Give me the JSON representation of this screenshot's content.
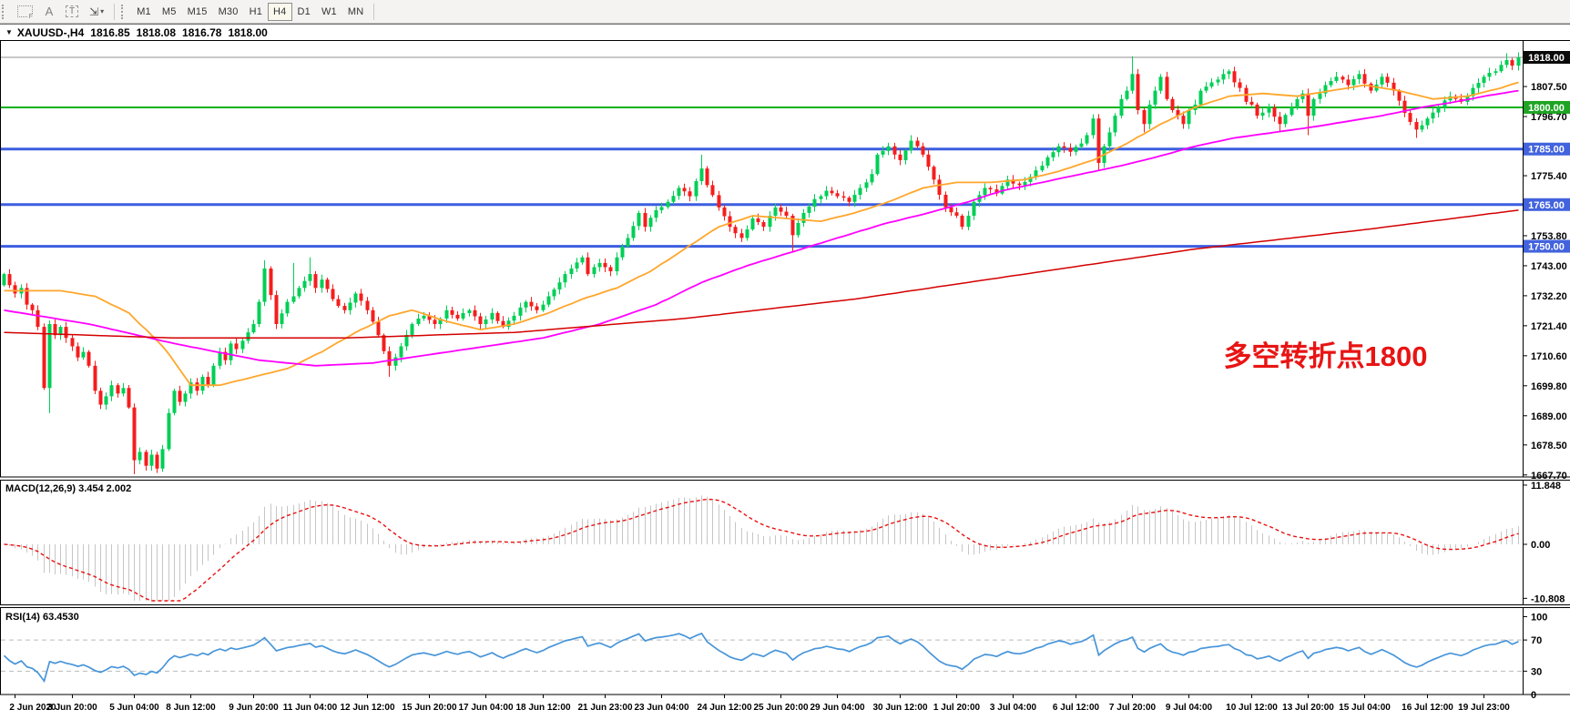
{
  "toolbar": {
    "grid_f": "F",
    "tool_a": "A",
    "tool_t": "T",
    "arrow_glyph": "⇲",
    "dropdown_caret": "▾",
    "timeframes": [
      "M1",
      "M5",
      "M15",
      "M30",
      "H1",
      "H4",
      "D1",
      "W1",
      "MN"
    ],
    "active_timeframe": "H4"
  },
  "quote_bar": {
    "dropdown_glyph": "▼",
    "symbol": "XAUUSD-,H4",
    "open": "1816.85",
    "high": "1818.08",
    "low": "1816.78",
    "close": "1818.00"
  },
  "colors": {
    "up": "#00cf56",
    "down": "#f51d1d",
    "ma_fast": "#ffa62b",
    "ma_mid": "#ff00ff",
    "ma_slow": "#d40000",
    "hline_green": "#00b21b",
    "hline_blue": "#3c5ee0",
    "badge_black": "#0a0a0a",
    "badge_green": "#1ea422",
    "badge_blue": "#4263dd",
    "current_price_line": "#909090",
    "macd_hist": "#c6c6c6",
    "macd_signal": "#e81010",
    "rsi_line": "#4795d9",
    "rsi_level": "#b9b9b9",
    "axis_text": "#000000",
    "annotation": "#e81414",
    "border": "#000000"
  },
  "chart_data": {
    "type": "candlestick",
    "symbol": "XAUUSD",
    "timeframe": "H4",
    "bars": 268,
    "price_axis_top": 1823.9,
    "price_axis_bottom": 1665.5,
    "close_path": [
      [
        0,
        1740
      ],
      [
        1,
        1736
      ],
      [
        2,
        1733
      ],
      [
        3,
        1735
      ],
      [
        4,
        1729
      ],
      [
        5,
        1727
      ],
      [
        6,
        1721
      ],
      [
        7,
        1699
      ],
      [
        8,
        1722
      ],
      [
        9,
        1718
      ],
      [
        10,
        1721
      ],
      [
        11,
        1717
      ],
      [
        12,
        1714
      ],
      [
        13,
        1710
      ],
      [
        14,
        1712
      ],
      [
        15,
        1707
      ],
      [
        16,
        1698
      ],
      [
        17,
        1693
      ],
      [
        18,
        1696
      ],
      [
        19,
        1700
      ],
      [
        20,
        1697
      ],
      [
        21,
        1699
      ],
      [
        22,
        1692
      ],
      [
        23,
        1673
      ],
      [
        24,
        1676
      ],
      [
        25,
        1671
      ],
      [
        26,
        1675
      ],
      [
        27,
        1670
      ],
      [
        28,
        1677
      ],
      [
        29,
        1690
      ],
      [
        30,
        1698
      ],
      [
        31,
        1694
      ],
      [
        32,
        1697
      ],
      [
        33,
        1701
      ],
      [
        34,
        1698
      ],
      [
        35,
        1703
      ],
      [
        36,
        1700
      ],
      [
        37,
        1707
      ],
      [
        38,
        1712
      ],
      [
        39,
        1709
      ],
      [
        40,
        1715
      ],
      [
        41,
        1713
      ],
      [
        42,
        1716
      ],
      [
        43,
        1719
      ],
      [
        44,
        1722
      ],
      [
        45,
        1730
      ],
      [
        46,
        1742
      ],
      [
        48,
        1722
      ],
      [
        50,
        1730
      ],
      [
        52,
        1735
      ],
      [
        54,
        1740
      ],
      [
        55,
        1735
      ],
      [
        56,
        1738
      ],
      [
        58,
        1731
      ],
      [
        60,
        1727
      ],
      [
        62,
        1733
      ],
      [
        64,
        1727
      ],
      [
        66,
        1718
      ],
      [
        68,
        1707
      ],
      [
        70,
        1714
      ],
      [
        72,
        1722
      ],
      [
        74,
        1725
      ],
      [
        76,
        1722
      ],
      [
        78,
        1727
      ],
      [
        80,
        1724
      ],
      [
        82,
        1727
      ],
      [
        84,
        1722
      ],
      [
        86,
        1726
      ],
      [
        88,
        1721
      ],
      [
        90,
        1725
      ],
      [
        92,
        1730
      ],
      [
        94,
        1727
      ],
      [
        96,
        1732
      ],
      [
        98,
        1737
      ],
      [
        100,
        1742
      ],
      [
        102,
        1746
      ],
      [
        103,
        1740
      ],
      [
        105,
        1744
      ],
      [
        107,
        1741
      ],
      [
        108,
        1746
      ],
      [
        110,
        1753
      ],
      [
        112,
        1762
      ],
      [
        113,
        1757
      ],
      [
        115,
        1763
      ],
      [
        117,
        1766
      ],
      [
        119,
        1771
      ],
      [
        121,
        1768
      ],
      [
        123,
        1778
      ],
      [
        124,
        1772
      ],
      [
        126,
        1764
      ],
      [
        128,
        1757
      ],
      [
        130,
        1753
      ],
      [
        132,
        1760
      ],
      [
        134,
        1757
      ],
      [
        136,
        1764
      ],
      [
        138,
        1761
      ],
      [
        139,
        1754
      ],
      [
        141,
        1762
      ],
      [
        143,
        1767
      ],
      [
        145,
        1770
      ],
      [
        147,
        1768
      ],
      [
        149,
        1766
      ],
      [
        151,
        1771
      ],
      [
        153,
        1776
      ],
      [
        154,
        1783
      ],
      [
        156,
        1786
      ],
      [
        158,
        1781
      ],
      [
        160,
        1788
      ],
      [
        162,
        1783
      ],
      [
        164,
        1774
      ],
      [
        166,
        1764
      ],
      [
        168,
        1761
      ],
      [
        169,
        1757
      ],
      [
        171,
        1766
      ],
      [
        173,
        1771
      ],
      [
        175,
        1769
      ],
      [
        177,
        1774
      ],
      [
        179,
        1772
      ],
      [
        181,
        1775
      ],
      [
        183,
        1779
      ],
      [
        184,
        1782
      ],
      [
        186,
        1786
      ],
      [
        188,
        1784
      ],
      [
        190,
        1787
      ],
      [
        191,
        1790
      ],
      [
        192,
        1796
      ],
      [
        193,
        1780
      ],
      [
        194,
        1786
      ],
      [
        195,
        1791
      ],
      [
        196,
        1797
      ],
      [
        197,
        1803
      ],
      [
        198,
        1806
      ],
      [
        199,
        1812
      ],
      [
        200,
        1799
      ],
      [
        201,
        1794
      ],
      [
        202,
        1801
      ],
      [
        203,
        1806
      ],
      [
        204,
        1811
      ],
      [
        205,
        1803
      ],
      [
        206,
        1799
      ],
      [
        207,
        1797
      ],
      [
        208,
        1794
      ],
      [
        209,
        1799
      ],
      [
        210,
        1801
      ],
      [
        211,
        1806
      ],
      [
        213,
        1809
      ],
      [
        215,
        1812
      ],
      [
        216,
        1813
      ],
      [
        217,
        1809
      ],
      [
        218,
        1807
      ],
      [
        219,
        1802
      ],
      [
        220,
        1801
      ],
      [
        221,
        1797
      ],
      [
        223,
        1800
      ],
      [
        225,
        1794
      ],
      [
        227,
        1800
      ],
      [
        229,
        1805
      ],
      [
        230,
        1797
      ],
      [
        231,
        1803
      ],
      [
        233,
        1808
      ],
      [
        235,
        1811
      ],
      [
        237,
        1808
      ],
      [
        239,
        1812
      ],
      [
        241,
        1806
      ],
      [
        243,
        1811
      ],
      [
        245,
        1806
      ],
      [
        247,
        1798
      ],
      [
        249,
        1792
      ],
      [
        251,
        1796
      ],
      [
        253,
        1800
      ],
      [
        255,
        1804
      ],
      [
        257,
        1802
      ],
      [
        259,
        1807
      ],
      [
        261,
        1811
      ],
      [
        263,
        1813
      ],
      [
        265,
        1817
      ],
      [
        266,
        1815
      ],
      [
        267,
        1818
      ]
    ],
    "wick_overrides": [
      [
        8,
        "l",
        1690
      ],
      [
        23,
        "l",
        1668
      ],
      [
        27,
        "l",
        1669
      ],
      [
        46,
        "h",
        1745
      ],
      [
        51,
        "h",
        1744
      ],
      [
        54,
        "h",
        1746
      ],
      [
        68,
        "l",
        1703
      ],
      [
        123,
        "h",
        1783
      ],
      [
        139,
        "l",
        1748
      ],
      [
        160,
        "h",
        1790
      ],
      [
        169,
        "l",
        1756
      ],
      [
        193,
        "l",
        1777
      ],
      [
        199,
        "h",
        1818.4
      ],
      [
        201,
        "l",
        1791
      ],
      [
        225,
        "l",
        1791
      ],
      [
        230,
        "l",
        1790
      ],
      [
        249,
        "l",
        1789
      ],
      [
        265,
        "h",
        1819.5
      ]
    ],
    "moving_averages": [
      {
        "name": "ma-fast-orange",
        "color_key": "ma_fast",
        "width": 1.8,
        "anchors": [
          [
            0,
            1734
          ],
          [
            10,
            1734
          ],
          [
            16,
            1732
          ],
          [
            22,
            1726
          ],
          [
            28,
            1714
          ],
          [
            33,
            1700
          ],
          [
            38,
            1700
          ],
          [
            44,
            1703
          ],
          [
            50,
            1706
          ],
          [
            56,
            1712
          ],
          [
            62,
            1719
          ],
          [
            68,
            1725
          ],
          [
            72,
            1727
          ],
          [
            78,
            1723
          ],
          [
            84,
            1720
          ],
          [
            90,
            1722
          ],
          [
            96,
            1726
          ],
          [
            102,
            1731
          ],
          [
            108,
            1735
          ],
          [
            114,
            1741
          ],
          [
            120,
            1749
          ],
          [
            126,
            1757
          ],
          [
            132,
            1761
          ],
          [
            138,
            1760
          ],
          [
            144,
            1759
          ],
          [
            150,
            1762
          ],
          [
            156,
            1766
          ],
          [
            162,
            1771
          ],
          [
            168,
            1773
          ],
          [
            174,
            1773
          ],
          [
            180,
            1774
          ],
          [
            186,
            1777
          ],
          [
            192,
            1781
          ],
          [
            198,
            1787
          ],
          [
            204,
            1794
          ],
          [
            210,
            1800
          ],
          [
            216,
            1804
          ],
          [
            222,
            1805
          ],
          [
            228,
            1804
          ],
          [
            234,
            1806
          ],
          [
            240,
            1808
          ],
          [
            246,
            1806
          ],
          [
            252,
            1803
          ],
          [
            258,
            1804
          ],
          [
            264,
            1807
          ],
          [
            267,
            1809
          ]
        ]
      },
      {
        "name": "ma-mid-magenta",
        "color_key": "ma_mid",
        "width": 1.8,
        "anchors": [
          [
            0,
            1727
          ],
          [
            15,
            1722
          ],
          [
            30,
            1715
          ],
          [
            45,
            1709
          ],
          [
            55,
            1707
          ],
          [
            65,
            1708
          ],
          [
            75,
            1711
          ],
          [
            85,
            1714
          ],
          [
            95,
            1717
          ],
          [
            105,
            1722
          ],
          [
            115,
            1729
          ],
          [
            123,
            1737
          ],
          [
            131,
            1743
          ],
          [
            139,
            1748
          ],
          [
            147,
            1753
          ],
          [
            155,
            1758
          ],
          [
            163,
            1762
          ],
          [
            170,
            1766
          ],
          [
            176,
            1770
          ],
          [
            183,
            1773
          ],
          [
            190,
            1776
          ],
          [
            197,
            1779
          ],
          [
            203,
            1782
          ],
          [
            210,
            1786
          ],
          [
            217,
            1789
          ],
          [
            224,
            1791
          ],
          [
            231,
            1793
          ],
          [
            237,
            1795
          ],
          [
            243,
            1797
          ],
          [
            250,
            1800
          ],
          [
            256,
            1802
          ],
          [
            261,
            1804
          ],
          [
            267,
            1806
          ]
        ]
      },
      {
        "name": "ma-slow-red",
        "color_key": "ma_slow",
        "width": 1.5,
        "anchors": [
          [
            0,
            1719
          ],
          [
            30,
            1717
          ],
          [
            60,
            1717
          ],
          [
            90,
            1719
          ],
          [
            120,
            1724
          ],
          [
            150,
            1731
          ],
          [
            180,
            1740
          ],
          [
            210,
            1749
          ],
          [
            240,
            1756
          ],
          [
            267,
            1763
          ]
        ]
      }
    ],
    "hlines": [
      {
        "price": 1800.0,
        "badge": "1800.00",
        "color_key": "hline_green",
        "badge_color_key": "badge_green",
        "width": 2
      },
      {
        "price": 1785.0,
        "badge": "1785.00",
        "color_key": "hline_blue",
        "badge_color_key": "badge_blue",
        "width": 3
      },
      {
        "price": 1765.0,
        "badge": "1765.00",
        "color_key": "hline_blue",
        "badge_color_key": "badge_blue",
        "width": 3
      },
      {
        "price": 1750.0,
        "badge": "1750.00",
        "color_key": "hline_blue",
        "badge_color_key": "badge_blue",
        "width": 3
      }
    ],
    "current_price": {
      "value": 1818.0,
      "badge": "1818.00"
    },
    "y_ticks": [
      "1807.50",
      "1796.70",
      "1775.40",
      "1753.80",
      "1743.00",
      "1732.20",
      "1721.40",
      "1710.60",
      "1699.80",
      "1689.00",
      "1678.50",
      "1667.70"
    ],
    "x_labels": [
      "2 Jun 2020",
      "3 Jun 20:00",
      "5 Jun 04:00",
      "8 Jun 12:00",
      "9 Jun 20:00",
      "11 Jun 04:00",
      "12 Jun 12:00",
      "15 Jun 20:00",
      "17 Jun 04:00",
      "18 Jun 12:00",
      "21 Jun 23:00",
      "23 Jun 04:00",
      "24 Jun 12:00",
      "25 Jun 20:00",
      "29 Jun 04:00",
      "30 Jun 12:00",
      "1 Jul 20:00",
      "3 Jul 04:00",
      "6 Jul 12:00",
      "7 Jul 20:00",
      "9 Jul 04:00",
      "10 Jul 12:00",
      "13 Jul 20:00",
      "15 Jul 04:00",
      "16 Jul 12:00",
      "19 Jul 23:00"
    ],
    "x_label_bars": [
      2,
      12,
      23,
      33,
      44,
      54,
      64,
      75,
      85,
      95,
      106,
      116,
      127,
      137,
      147,
      158,
      168,
      178,
      189,
      199,
      209,
      220,
      230,
      240,
      251,
      261
    ],
    "annotation": {
      "text": "多空转折点1800",
      "bar": 233,
      "price": 1707,
      "font_size": 31
    },
    "macd": {
      "label": "MACD(12,26,9)",
      "current": "3.454 2.002",
      "fast": 12,
      "slow": 26,
      "signal": 9,
      "axis_labels": [
        "11.848",
        "0.00",
        "-10.808"
      ],
      "axis_values": [
        11.848,
        0,
        -10.808
      ]
    },
    "rsi": {
      "label": "RSI(14)",
      "current": "63.4530",
      "period": 14,
      "axis_labels": [
        "100",
        "70",
        "30",
        "0"
      ],
      "axis_values": [
        100,
        70,
        30,
        0
      ],
      "levels": [
        70,
        30
      ]
    }
  }
}
